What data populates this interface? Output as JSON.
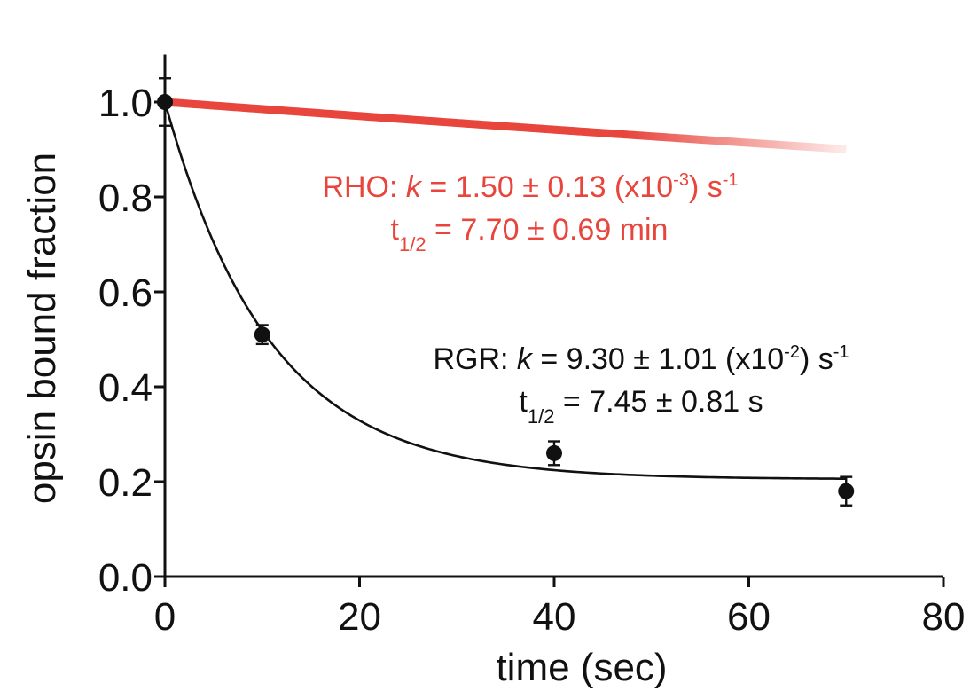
{
  "chart_data": {
    "type": "scatter",
    "xlabel": "time (sec)",
    "ylabel": "opsin bound fraction",
    "xlim": [
      0,
      80
    ],
    "ylim": [
      0.0,
      1.1
    ],
    "x_ticks": [
      0,
      20,
      40,
      60,
      80
    ],
    "x_tick_labels": [
      "0",
      "20",
      "40",
      "60",
      "80"
    ],
    "y_ticks": [
      0.0,
      0.2,
      0.4,
      0.6,
      0.8,
      1.0
    ],
    "y_tick_labels": [
      "0.0",
      "0.2",
      "0.4",
      "0.6",
      "0.8",
      "1.0"
    ],
    "grid": false,
    "series": [
      {
        "name": "RGR",
        "color": "#111111",
        "x": [
          0,
          10,
          40,
          70
        ],
        "y": [
          1.0,
          0.51,
          0.26,
          0.18
        ],
        "error": [
          0.05,
          0.02,
          0.025,
          0.03
        ],
        "fit": {
          "model": "exponential",
          "x_range": [
            0,
            70
          ],
          "k": 0.093,
          "plateau": 0.205
        }
      },
      {
        "name": "RHO",
        "color": "#e8453c",
        "fit": {
          "model": "exponential",
          "x_range": [
            0,
            70
          ],
          "k": 0.0015,
          "plateau": 0
        }
      }
    ],
    "annotations": {
      "rho": {
        "prefix": "RHO: ",
        "k_symbol": "k",
        "k_text": " = 1.50 ± 0.13 (x10",
        "k_exp": "-3",
        "k_unit": ") s",
        "k_unit_exp": "-1",
        "t_base": "t",
        "t_sub": "1/2",
        "t_text": " = 7.70 ± 0.69 min",
        "color": "#e8453c"
      },
      "rgr": {
        "prefix": "RGR: ",
        "k_symbol": "k",
        "k_text": " = 9.30 ± 1.01 (x10",
        "k_exp": "-2",
        "k_unit": ") s",
        "k_unit_exp": "-1",
        "t_base": "t",
        "t_sub": "1/2",
        "t_text": " = 7.45 ± 0.81 s",
        "color": "#111111"
      }
    }
  }
}
